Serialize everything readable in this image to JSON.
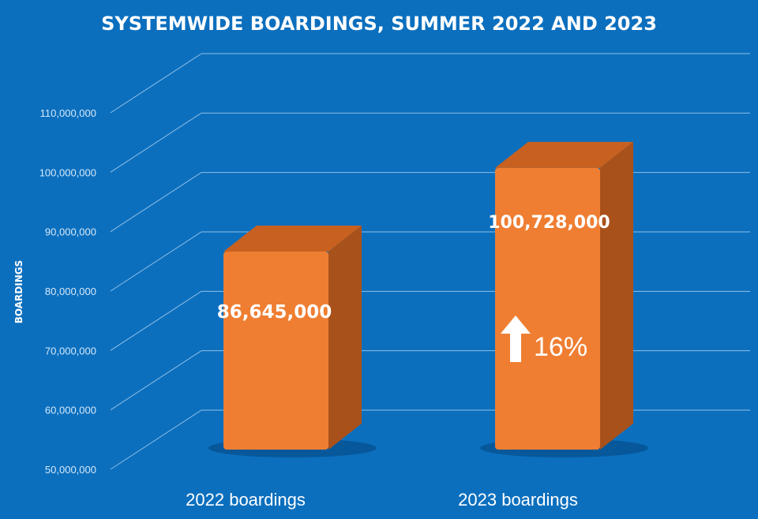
{
  "colors": {
    "background": "#0b6fbe",
    "grid": "#8fbfe6",
    "bar_front": "#ef7e32",
    "bar_top": "#c8611f",
    "bar_side": "#a9511b",
    "text": "#ffffff",
    "tick_text": "#d6e9f8"
  },
  "annotation": {
    "icon": "up-arrow-icon",
    "text": "16%"
  },
  "chart_data": {
    "type": "bar",
    "title": "SYSTEMWIDE BOARDINGS, SUMMER 2022 AND 2023",
    "xlabel": "",
    "ylabel": "BOARDINGS",
    "categories": [
      "2022 boardings",
      "2023 boardings"
    ],
    "values": [
      86645000,
      100728000
    ],
    "value_labels": [
      "86,645,000",
      "100,728,000"
    ],
    "ylim": [
      50000000,
      110000000
    ],
    "yticks": [
      50000000,
      60000000,
      70000000,
      80000000,
      90000000,
      100000000,
      110000000
    ],
    "ytick_labels": [
      "50,000,000",
      "60,000,000",
      "70,000,000",
      "80,000,000",
      "90,000,000",
      "100,000,000",
      "110,000,000"
    ],
    "grid": true,
    "legend": "none",
    "style": "3d"
  }
}
